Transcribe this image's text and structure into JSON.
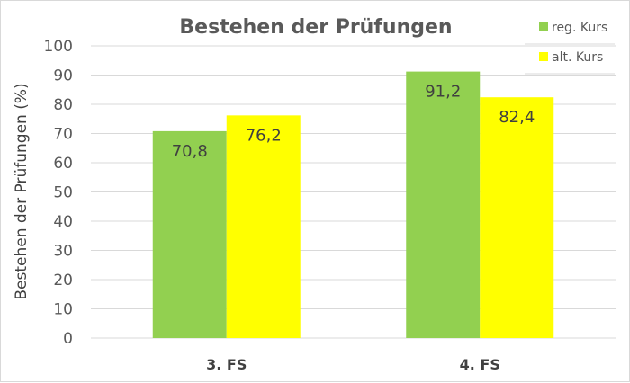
{
  "chart_data": {
    "type": "bar",
    "title": "Bestehen der Prüfungen",
    "xlabel": "",
    "ylabel": "Bestehen der Prüfungen (%)",
    "categories": [
      "3. FS",
      "4. FS"
    ],
    "series": [
      {
        "name": "reg. Kurs",
        "values": [
          70.8,
          91.2
        ],
        "labels": [
          "70,8",
          "91,2"
        ],
        "color": "#92d050"
      },
      {
        "name": "alt. Kurs",
        "values": [
          76.2,
          82.4
        ],
        "labels": [
          "76,2",
          "82,4"
        ],
        "color": "#ffff00"
      }
    ],
    "ylim": [
      0,
      100
    ],
    "yticks": [
      0,
      10,
      20,
      30,
      40,
      50,
      60,
      70,
      80,
      90,
      100
    ],
    "grid": true,
    "legend": "top-right"
  }
}
